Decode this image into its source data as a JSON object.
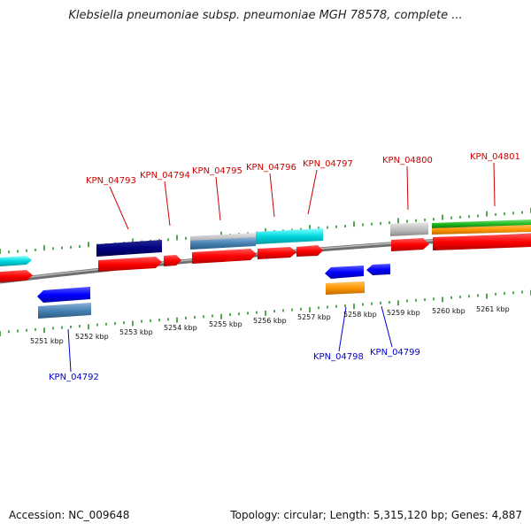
{
  "title": "Klebsiella pneumoniae subsp. pneumoniae MGH 78578, complete ...",
  "footer": {
    "accession": "Accession: NC_009648",
    "stats": "Topology: circular; Length: 5,315,120 bp; Genes: 4,887"
  },
  "colors": {
    "forward_label": "#cc0000",
    "reverse_label": "#0000cc",
    "tick": "#1a8a1a",
    "backbone": "#8a8a8a"
  },
  "scale_labels": [
    "5251 kbp",
    "5252 kbp",
    "5253 kbp",
    "5254 kbp",
    "5255 kbp",
    "5256 kbp",
    "5257 kbp",
    "5258 kbp",
    "5259 kbp",
    "5260 kbp",
    "5261 kbp"
  ],
  "forward_labels": [
    "KPN_04793",
    "KPN_04794",
    "KPN_04795",
    "KPN_04796",
    "KPN_04797",
    "KPN_04800",
    "KPN_04801"
  ],
  "reverse_labels": [
    "KPN_04792",
    "KPN_04798",
    "KPN_04799"
  ]
}
